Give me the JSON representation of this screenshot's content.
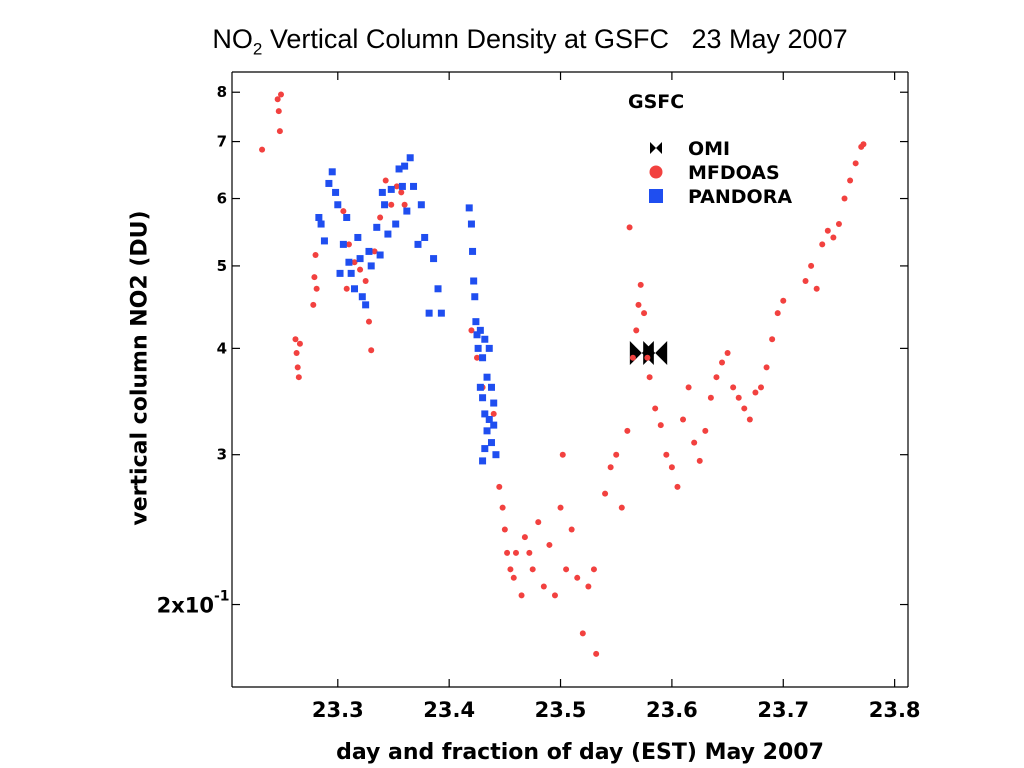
{
  "chart_data": {
    "type": "scatter",
    "title": {
      "prefix": "NO",
      "sub": "2",
      "rest": " Vertical Column Density at GSFC   23 May 2007"
    },
    "xlabel": "day and fraction of day (EST) May 2007",
    "ylabel": "vertical column NO2 (DU)",
    "xlim": [
      23.205,
      23.812
    ],
    "ylim": [
      1.6,
      8.45
    ],
    "yscale": "log",
    "grid": false,
    "legend_placement": "top-right",
    "legend_title": "GSFC",
    "xticks": [
      23.3,
      23.4,
      23.5,
      23.6,
      23.7,
      23.8
    ],
    "xtick_labels": [
      "23.3",
      "23.4",
      "23.5",
      "23.6",
      "23.7",
      "23.8"
    ],
    "yticks": [
      2,
      3,
      4,
      5,
      6,
      7,
      8
    ],
    "ytick_labels": [
      "2x10",
      "3",
      "4",
      "5",
      "6",
      "7",
      "8"
    ],
    "ytick_superscript": "-1",
    "colors": {
      "mfdoas": "#f2413f",
      "pandora": "#1f4ef0",
      "omi": "#000000"
    },
    "series": [
      {
        "name": "OMI",
        "marker": "bowtie",
        "points": [
          [
            23.573,
            3.95
          ],
          [
            23.585,
            3.95
          ]
        ]
      },
      {
        "name": "MFDOAS",
        "marker": "circle",
        "points": [
          [
            23.232,
            6.85
          ],
          [
            23.246,
            7.85
          ],
          [
            23.247,
            7.6
          ],
          [
            23.248,
            7.2
          ],
          [
            23.249,
            7.95
          ],
          [
            23.262,
            4.1
          ],
          [
            23.263,
            3.95
          ],
          [
            23.264,
            3.8
          ],
          [
            23.265,
            3.7
          ],
          [
            23.266,
            4.05
          ],
          [
            23.278,
            4.5
          ],
          [
            23.279,
            4.85
          ],
          [
            23.28,
            5.15
          ],
          [
            23.281,
            4.7
          ],
          [
            23.305,
            5.8
          ],
          [
            23.308,
            4.7
          ],
          [
            23.31,
            5.3
          ],
          [
            23.315,
            5.05
          ],
          [
            23.32,
            4.95
          ],
          [
            23.325,
            4.8
          ],
          [
            23.328,
            4.3
          ],
          [
            23.33,
            3.98
          ],
          [
            23.333,
            5.2
          ],
          [
            23.338,
            5.7
          ],
          [
            23.343,
            6.3
          ],
          [
            23.348,
            5.9
          ],
          [
            23.353,
            6.2
          ],
          [
            23.357,
            6.1
          ],
          [
            23.36,
            5.9
          ],
          [
            23.42,
            4.2
          ],
          [
            23.425,
            3.9
          ],
          [
            23.43,
            3.6
          ],
          [
            23.44,
            3.35
          ],
          [
            23.445,
            2.75
          ],
          [
            23.448,
            2.6
          ],
          [
            23.45,
            2.45
          ],
          [
            23.452,
            2.3
          ],
          [
            23.455,
            2.2
          ],
          [
            23.458,
            2.15
          ],
          [
            23.46,
            2.3
          ],
          [
            23.465,
            2.05
          ],
          [
            23.468,
            2.4
          ],
          [
            23.472,
            2.3
          ],
          [
            23.475,
            2.2
          ],
          [
            23.48,
            2.5
          ],
          [
            23.485,
            2.1
          ],
          [
            23.49,
            2.35
          ],
          [
            23.495,
            2.05
          ],
          [
            23.5,
            2.6
          ],
          [
            23.502,
            3.0
          ],
          [
            23.505,
            2.2
          ],
          [
            23.51,
            2.45
          ],
          [
            23.515,
            2.15
          ],
          [
            23.52,
            1.85
          ],
          [
            23.525,
            2.1
          ],
          [
            23.53,
            2.2
          ],
          [
            23.532,
            1.75
          ],
          [
            23.54,
            2.7
          ],
          [
            23.545,
            2.9
          ],
          [
            23.55,
            3.0
          ],
          [
            23.555,
            2.6
          ],
          [
            23.56,
            3.2
          ],
          [
            23.562,
            5.55
          ],
          [
            23.565,
            3.9
          ],
          [
            23.568,
            4.2
          ],
          [
            23.57,
            4.5
          ],
          [
            23.572,
            4.75
          ],
          [
            23.575,
            4.4
          ],
          [
            23.578,
            3.9
          ],
          [
            23.58,
            3.7
          ],
          [
            23.585,
            3.4
          ],
          [
            23.59,
            3.25
          ],
          [
            23.595,
            3.0
          ],
          [
            23.6,
            2.9
          ],
          [
            23.605,
            2.75
          ],
          [
            23.61,
            3.3
          ],
          [
            23.615,
            3.6
          ],
          [
            23.62,
            3.1
          ],
          [
            23.625,
            2.95
          ],
          [
            23.63,
            3.2
          ],
          [
            23.635,
            3.5
          ],
          [
            23.64,
            3.7
          ],
          [
            23.645,
            3.85
          ],
          [
            23.65,
            3.95
          ],
          [
            23.655,
            3.6
          ],
          [
            23.66,
            3.5
          ],
          [
            23.665,
            3.4
          ],
          [
            23.67,
            3.3
          ],
          [
            23.675,
            3.55
          ],
          [
            23.68,
            3.6
          ],
          [
            23.685,
            3.8
          ],
          [
            23.69,
            4.1
          ],
          [
            23.695,
            4.4
          ],
          [
            23.7,
            4.55
          ],
          [
            23.72,
            4.8
          ],
          [
            23.725,
            5.0
          ],
          [
            23.73,
            4.7
          ],
          [
            23.735,
            5.3
          ],
          [
            23.74,
            5.5
          ],
          [
            23.745,
            5.4
          ],
          [
            23.75,
            5.6
          ],
          [
            23.755,
            6.0
          ],
          [
            23.76,
            6.3
          ],
          [
            23.765,
            6.6
          ],
          [
            23.77,
            6.9
          ],
          [
            23.772,
            6.95
          ]
        ]
      },
      {
        "name": "PANDORA",
        "marker": "square",
        "points": [
          [
            23.283,
            5.7
          ],
          [
            23.285,
            5.6
          ],
          [
            23.288,
            5.35
          ],
          [
            23.292,
            6.25
          ],
          [
            23.295,
            6.45
          ],
          [
            23.298,
            6.1
          ],
          [
            23.3,
            5.9
          ],
          [
            23.302,
            4.9
          ],
          [
            23.305,
            5.3
          ],
          [
            23.308,
            5.7
          ],
          [
            23.31,
            5.05
          ],
          [
            23.312,
            4.9
          ],
          [
            23.315,
            4.7
          ],
          [
            23.318,
            5.4
          ],
          [
            23.32,
            5.1
          ],
          [
            23.322,
            4.6
          ],
          [
            23.325,
            4.5
          ],
          [
            23.328,
            5.2
          ],
          [
            23.33,
            5.0
          ],
          [
            23.335,
            5.55
          ],
          [
            23.338,
            5.15
          ],
          [
            23.34,
            6.1
          ],
          [
            23.342,
            5.9
          ],
          [
            23.345,
            5.45
          ],
          [
            23.348,
            6.15
          ],
          [
            23.352,
            5.6
          ],
          [
            23.355,
            6.5
          ],
          [
            23.358,
            6.2
          ],
          [
            23.36,
            6.55
          ],
          [
            23.362,
            5.8
          ],
          [
            23.365,
            6.7
          ],
          [
            23.368,
            6.2
          ],
          [
            23.372,
            5.3
          ],
          [
            23.375,
            5.9
          ],
          [
            23.378,
            5.4
          ],
          [
            23.382,
            4.4
          ],
          [
            23.386,
            5.1
          ],
          [
            23.39,
            4.7
          ],
          [
            23.393,
            4.4
          ],
          [
            23.418,
            5.85
          ],
          [
            23.42,
            5.6
          ],
          [
            23.421,
            5.2
          ],
          [
            23.422,
            4.8
          ],
          [
            23.423,
            4.6
          ],
          [
            23.424,
            4.3
          ],
          [
            23.425,
            4.15
          ],
          [
            23.426,
            4.0
          ],
          [
            23.428,
            4.2
          ],
          [
            23.43,
            3.9
          ],
          [
            23.432,
            4.1
          ],
          [
            23.434,
            3.7
          ],
          [
            23.436,
            4.0
          ],
          [
            23.43,
            3.5
          ],
          [
            23.432,
            3.35
          ],
          [
            23.434,
            3.2
          ],
          [
            23.436,
            3.3
          ],
          [
            23.438,
            3.1
          ],
          [
            23.44,
            3.45
          ],
          [
            23.442,
            3.0
          ],
          [
            23.428,
            3.6
          ],
          [
            23.43,
            2.95
          ],
          [
            23.432,
            3.05
          ],
          [
            23.438,
            3.6
          ],
          [
            23.44,
            3.25
          ]
        ]
      }
    ]
  }
}
